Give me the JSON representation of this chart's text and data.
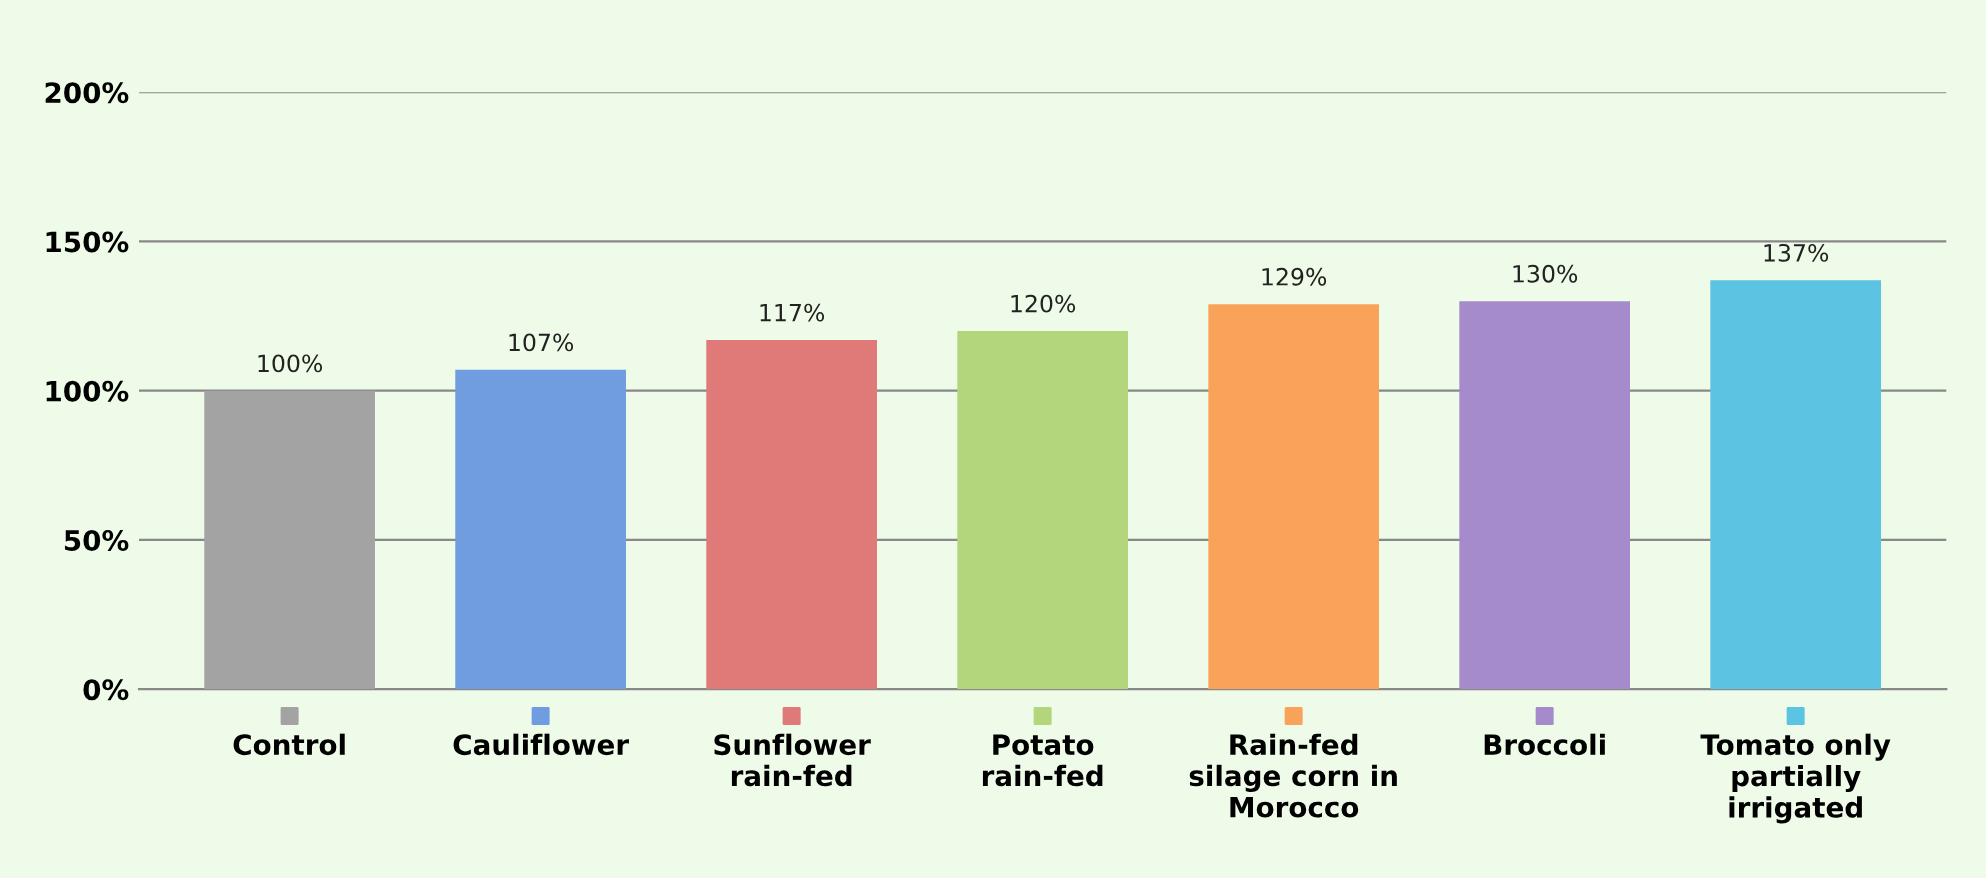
{
  "chart_data": {
    "type": "bar",
    "categories": [
      "Control",
      "Cauliflower",
      "Sunflower\nrain-fed",
      "Potato\nrain-fed",
      "Rain-fed\nsilage corn in\nMorocco",
      "Broccoli",
      "Tomato only\npartially\nirrigated"
    ],
    "values": [
      100,
      107,
      117,
      120,
      129,
      130,
      137
    ],
    "value_labels": [
      "100%",
      "107%",
      "117%",
      "120%",
      "129%",
      "130%",
      "137%"
    ],
    "colors": [
      "#a3a3a3",
      "#6f9de0",
      "#e07a78",
      "#b3d67c",
      "#f9a35a",
      "#a68bcc",
      "#5cc3e3"
    ],
    "ylim": [
      0,
      200
    ],
    "yticks": [
      {
        "value": 0,
        "label": "0%"
      },
      {
        "value": 50,
        "label": "50%"
      },
      {
        "value": 100,
        "label": "100%"
      },
      {
        "value": 150,
        "label": "150%"
      },
      {
        "value": 200,
        "label": "200%"
      }
    ],
    "grid": "y"
  }
}
